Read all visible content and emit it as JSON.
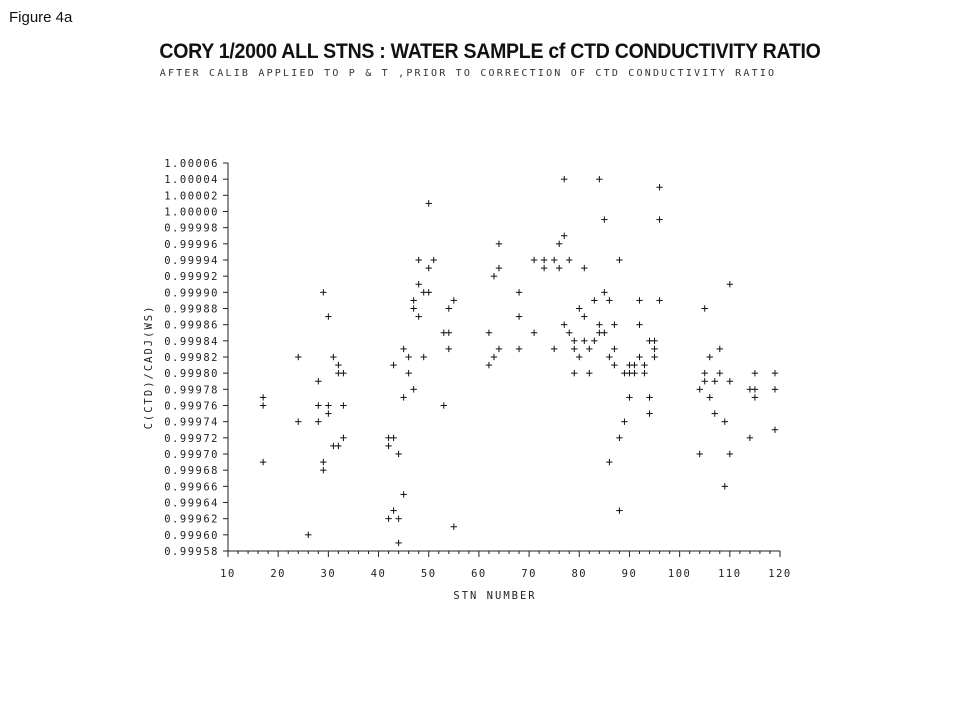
{
  "figure_label": "Figure 4a",
  "chart_data": {
    "type": "scatter",
    "title": "CORY 1/2000 ALL STNS : WATER SAMPLE cf CTD CONDUCTIVITY RATIO",
    "subtitle": "AFTER CALIB APPLIED TO P & T ,PRIOR TO CORRECTION OF CTD CONDUCTIVITY RATIO",
    "xlabel": "STN NUMBER",
    "ylabel": "C(CTD)/CADJ(WS)",
    "xlim": [
      10,
      120
    ],
    "ylim": [
      0.99958,
      1.00006
    ],
    "x_ticks": [
      "10",
      "20",
      "30",
      "40",
      "50",
      "60",
      "70",
      "80",
      "90",
      "100",
      "110",
      "120"
    ],
    "y_ticks": [
      "0.99958",
      "0.99960",
      "0.99962",
      "0.99964",
      "0.99966",
      "0.99968",
      "0.99970",
      "0.99972",
      "0.99974",
      "0.99976",
      "0.99978",
      "0.99980",
      "0.99982",
      "0.99984",
      "0.99986",
      "0.99988",
      "0.99990",
      "0.99992",
      "0.99994",
      "0.99996",
      "0.99998",
      "1.00000",
      "1.00002",
      "1.00004",
      "1.00006"
    ],
    "grid": false,
    "marker": "+",
    "points": [
      [
        17,
        0.99977
      ],
      [
        17,
        0.99976
      ],
      [
        17,
        0.99969
      ],
      [
        24,
        0.99982
      ],
      [
        24,
        0.99974
      ],
      [
        26,
        0.9996
      ],
      [
        28,
        0.99979
      ],
      [
        28,
        0.99976
      ],
      [
        28,
        0.99974
      ],
      [
        29,
        0.9999
      ],
      [
        29,
        0.99969
      ],
      [
        29,
        0.99968
      ],
      [
        30,
        0.99987
      ],
      [
        30,
        0.99976
      ],
      [
        30,
        0.99975
      ],
      [
        31,
        0.99982
      ],
      [
        31,
        0.99971
      ],
      [
        32,
        0.99981
      ],
      [
        32,
        0.9998
      ],
      [
        32,
        0.99971
      ],
      [
        33,
        0.9998
      ],
      [
        33,
        0.99976
      ],
      [
        33,
        0.99972
      ],
      [
        42,
        0.99972
      ],
      [
        42,
        0.99971
      ],
      [
        42,
        0.99962
      ],
      [
        43,
        0.99981
      ],
      [
        43,
        0.99972
      ],
      [
        43,
        0.99963
      ],
      [
        44,
        0.9997
      ],
      [
        44,
        0.99962
      ],
      [
        44,
        0.99959
      ],
      [
        45,
        0.99983
      ],
      [
        45,
        0.99977
      ],
      [
        45,
        0.99965
      ],
      [
        46,
        0.99982
      ],
      [
        46,
        0.9998
      ],
      [
        47,
        0.99989
      ],
      [
        47,
        0.99988
      ],
      [
        47,
        0.99978
      ],
      [
        48,
        0.99994
      ],
      [
        48,
        0.99991
      ],
      [
        48,
        0.99987
      ],
      [
        49,
        0.9999
      ],
      [
        49,
        0.99982
      ],
      [
        50,
        1.00001
      ],
      [
        50,
        0.99993
      ],
      [
        50,
        0.9999
      ],
      [
        51,
        0.99994
      ],
      [
        53,
        0.99985
      ],
      [
        53,
        0.99976
      ],
      [
        54,
        0.99988
      ],
      [
        54,
        0.99985
      ],
      [
        54,
        0.99983
      ],
      [
        55,
        0.99989
      ],
      [
        55,
        0.99961
      ],
      [
        62,
        0.99985
      ],
      [
        62,
        0.99981
      ],
      [
        63,
        0.99992
      ],
      [
        63,
        0.99982
      ],
      [
        64,
        0.99996
      ],
      [
        64,
        0.99993
      ],
      [
        64,
        0.99983
      ],
      [
        68,
        0.9999
      ],
      [
        68,
        0.99987
      ],
      [
        68,
        0.99983
      ],
      [
        71,
        0.99994
      ],
      [
        71,
        0.99985
      ],
      [
        73,
        0.99994
      ],
      [
        73,
        0.99993
      ],
      [
        75,
        0.99994
      ],
      [
        75,
        0.99983
      ],
      [
        76,
        0.99996
      ],
      [
        76,
        0.99993
      ],
      [
        77,
        1.00004
      ],
      [
        77,
        0.99997
      ],
      [
        77,
        0.99986
      ],
      [
        78,
        0.99994
      ],
      [
        78,
        0.99985
      ],
      [
        79,
        0.99984
      ],
      [
        79,
        0.99983
      ],
      [
        79,
        0.9998
      ],
      [
        80,
        0.99988
      ],
      [
        80,
        0.99982
      ],
      [
        81,
        0.99993
      ],
      [
        81,
        0.99987
      ],
      [
        81,
        0.99984
      ],
      [
        82,
        0.99983
      ],
      [
        82,
        0.9998
      ],
      [
        83,
        0.99989
      ],
      [
        83,
        0.99984
      ],
      [
        84,
        1.00004
      ],
      [
        84,
        0.99986
      ],
      [
        84,
        0.99985
      ],
      [
        85,
        0.99999
      ],
      [
        85,
        0.9999
      ],
      [
        85,
        0.99985
      ],
      [
        86,
        0.99989
      ],
      [
        86,
        0.99982
      ],
      [
        86,
        0.99969
      ],
      [
        87,
        0.99986
      ],
      [
        87,
        0.99983
      ],
      [
        87,
        0.99981
      ],
      [
        88,
        0.99994
      ],
      [
        88,
        0.99972
      ],
      [
        88,
        0.99963
      ],
      [
        89,
        0.9998
      ],
      [
        89,
        0.99974
      ],
      [
        90,
        0.99981
      ],
      [
        90,
        0.9998
      ],
      [
        90,
        0.99977
      ],
      [
        91,
        0.99981
      ],
      [
        91,
        0.9998
      ],
      [
        92,
        0.99989
      ],
      [
        92,
        0.99986
      ],
      [
        92,
        0.99982
      ],
      [
        93,
        0.99981
      ],
      [
        93,
        0.9998
      ],
      [
        94,
        0.99984
      ],
      [
        94,
        0.99977
      ],
      [
        94,
        0.99975
      ],
      [
        95,
        0.99984
      ],
      [
        95,
        0.99983
      ],
      [
        95,
        0.99982
      ],
      [
        96,
        1.00003
      ],
      [
        96,
        0.99999
      ],
      [
        96,
        0.99989
      ],
      [
        104,
        0.99978
      ],
      [
        104,
        0.9997
      ],
      [
        105,
        0.99988
      ],
      [
        105,
        0.9998
      ],
      [
        105,
        0.99979
      ],
      [
        106,
        0.99982
      ],
      [
        106,
        0.99977
      ],
      [
        107,
        0.99979
      ],
      [
        107,
        0.99975
      ],
      [
        108,
        0.99983
      ],
      [
        108,
        0.9998
      ],
      [
        109,
        0.99974
      ],
      [
        109,
        0.99966
      ],
      [
        110,
        0.99991
      ],
      [
        110,
        0.99979
      ],
      [
        110,
        0.9997
      ],
      [
        114,
        0.99978
      ],
      [
        114,
        0.99972
      ],
      [
        115,
        0.9998
      ],
      [
        115,
        0.99978
      ],
      [
        115,
        0.99977
      ],
      [
        119,
        0.9998
      ],
      [
        119,
        0.99978
      ],
      [
        119,
        0.99973
      ]
    ]
  }
}
